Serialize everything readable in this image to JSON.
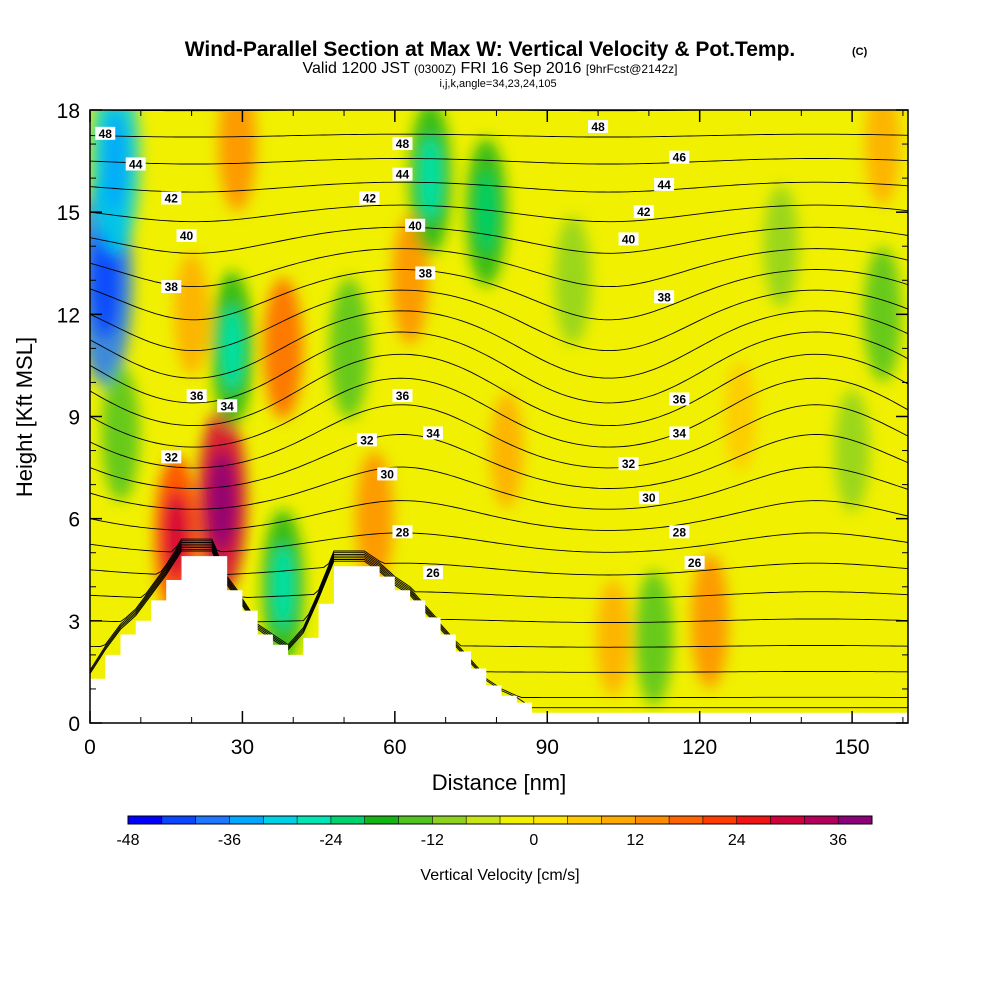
{
  "chart_data": {
    "type": "heatmap",
    "title": "Wind-Parallel Section at Max W: Vertical Velocity & Pot.Temp.",
    "title_mark": "(C)",
    "subtitle": {
      "prefix": "Valid 1200 JST",
      "utc": "(0300Z)",
      "date": "FRI 16 Sep 2016",
      "forecast": "[9hrFcst@2142z]"
    },
    "indices": "i,j,k,angle=34,23,24,105",
    "xlabel": "Distance [nm]",
    "ylabel": "Height [Kft MSL]",
    "xlim": [
      0,
      161
    ],
    "ylim": [
      0,
      18
    ],
    "x_ticks": [
      0,
      30,
      60,
      90,
      120,
      150
    ],
    "y_ticks": [
      0,
      3,
      6,
      9,
      12,
      15,
      18
    ],
    "colorbar": {
      "label": "Vertical Velocity [cm/s]",
      "min": -48,
      "max": 40,
      "step": 4,
      "ticks": [
        -48,
        -36,
        -24,
        -12,
        0,
        12,
        24,
        36
      ],
      "colors": [
        "#0000ff",
        "#0a46ff",
        "#1e78ff",
        "#00a8ff",
        "#00d2e6",
        "#00e6b4",
        "#00d26e",
        "#14b414",
        "#50c31e",
        "#8cd21e",
        "#c8e614",
        "#f0f000",
        "#ffe600",
        "#ffc800",
        "#ffaa00",
        "#ff8c00",
        "#ff6400",
        "#ff3c00",
        "#f01414",
        "#d2003c",
        "#b4005a",
        "#8c0078"
      ]
    },
    "terrain": {
      "x": [
        0,
        3,
        6,
        9,
        12,
        15,
        18,
        21,
        24,
        27,
        30,
        33,
        36,
        39,
        42,
        45,
        48,
        51,
        54,
        57,
        60,
        63,
        66,
        69,
        72,
        75,
        78,
        81,
        84,
        87,
        90,
        161
      ],
      "height": [
        1.3,
        2.0,
        2.6,
        3.0,
        3.6,
        4.2,
        4.9,
        4.9,
        4.9,
        3.9,
        3.3,
        2.6,
        2.3,
        2.0,
        2.5,
        3.5,
        4.6,
        4.6,
        4.6,
        4.3,
        3.9,
        3.6,
        3.1,
        2.6,
        2.1,
        1.6,
        1.1,
        0.8,
        0.6,
        0.3,
        0.3,
        0.3
      ]
    },
    "velocity_features": [
      {
        "x": 3,
        "z": 13,
        "value": -38
      },
      {
        "x": 5,
        "z": 16.5,
        "value": -30
      },
      {
        "x": 6,
        "z": 8.5,
        "value": -14
      },
      {
        "x": 17,
        "z": 5.5,
        "value": 22
      },
      {
        "x": 20,
        "z": 12,
        "value": 10
      },
      {
        "x": 26,
        "z": 6.5,
        "value": 30
      },
      {
        "x": 28,
        "z": 11,
        "value": -20
      },
      {
        "x": 29,
        "z": 17,
        "value": 14
      },
      {
        "x": 38,
        "z": 4,
        "value": -20
      },
      {
        "x": 38,
        "z": 11,
        "value": 16
      },
      {
        "x": 51,
        "z": 11,
        "value": -16
      },
      {
        "x": 56,
        "z": 6,
        "value": 14
      },
      {
        "x": 63,
        "z": 13,
        "value": 12
      },
      {
        "x": 67,
        "z": 16,
        "value": -20
      },
      {
        "x": 78,
        "z": 15,
        "value": -18
      },
      {
        "x": 82,
        "z": 8,
        "value": 8
      },
      {
        "x": 95,
        "z": 13,
        "value": -12
      },
      {
        "x": 103,
        "z": 2.5,
        "value": 8
      },
      {
        "x": 111,
        "z": 2.5,
        "value": -14
      },
      {
        "x": 122,
        "z": 3,
        "value": 14
      },
      {
        "x": 128,
        "z": 9,
        "value": 6
      },
      {
        "x": 136,
        "z": 14,
        "value": -10
      },
      {
        "x": 150,
        "z": 8,
        "value": -10
      },
      {
        "x": 156,
        "z": 12,
        "value": -14
      },
      {
        "x": 156,
        "z": 17,
        "value": 10
      }
    ],
    "theta_levels": [
      24,
      25,
      26,
      27,
      28,
      29,
      30,
      31,
      32,
      33,
      34,
      35,
      36,
      37,
      38,
      39,
      40,
      41,
      42,
      43,
      44,
      45,
      46,
      47,
      48
    ],
    "theta_labels": [
      {
        "value": "48",
        "x": 3,
        "z": 17.3
      },
      {
        "value": "44",
        "x": 9,
        "z": 16.4
      },
      {
        "value": "42",
        "x": 16,
        "z": 15.4
      },
      {
        "value": "40",
        "x": 19,
        "z": 14.3
      },
      {
        "value": "38",
        "x": 16,
        "z": 12.8
      },
      {
        "value": "36",
        "x": 21,
        "z": 9.6
      },
      {
        "value": "34",
        "x": 27,
        "z": 9.3
      },
      {
        "value": "32",
        "x": 16,
        "z": 7.8
      },
      {
        "value": "48",
        "x": 61.5,
        "z": 17.0
      },
      {
        "value": "44",
        "x": 61.5,
        "z": 16.1
      },
      {
        "value": "42",
        "x": 55,
        "z": 15.4
      },
      {
        "value": "40",
        "x": 64,
        "z": 14.6
      },
      {
        "value": "38",
        "x": 66,
        "z": 13.2
      },
      {
        "value": "36",
        "x": 61.5,
        "z": 9.6
      },
      {
        "value": "34",
        "x": 67.5,
        "z": 8.5
      },
      {
        "value": "32",
        "x": 54.5,
        "z": 8.3
      },
      {
        "value": "30",
        "x": 58.5,
        "z": 7.3
      },
      {
        "value": "28",
        "x": 61.5,
        "z": 5.6
      },
      {
        "value": "26",
        "x": 67.5,
        "z": 4.4
      },
      {
        "value": "48",
        "x": 100,
        "z": 17.5
      },
      {
        "value": "46",
        "x": 116,
        "z": 16.6
      },
      {
        "value": "44",
        "x": 113,
        "z": 15.8
      },
      {
        "value": "42",
        "x": 109,
        "z": 15.0
      },
      {
        "value": "40",
        "x": 106,
        "z": 14.2
      },
      {
        "value": "38",
        "x": 113,
        "z": 12.5
      },
      {
        "value": "36",
        "x": 116,
        "z": 9.5
      },
      {
        "value": "34",
        "x": 116,
        "z": 8.5
      },
      {
        "value": "32",
        "x": 106,
        "z": 7.6
      },
      {
        "value": "30",
        "x": 110,
        "z": 6.6
      },
      {
        "value": "28",
        "x": 116,
        "z": 5.6
      },
      {
        "value": "26",
        "x": 119,
        "z": 4.7
      }
    ]
  }
}
